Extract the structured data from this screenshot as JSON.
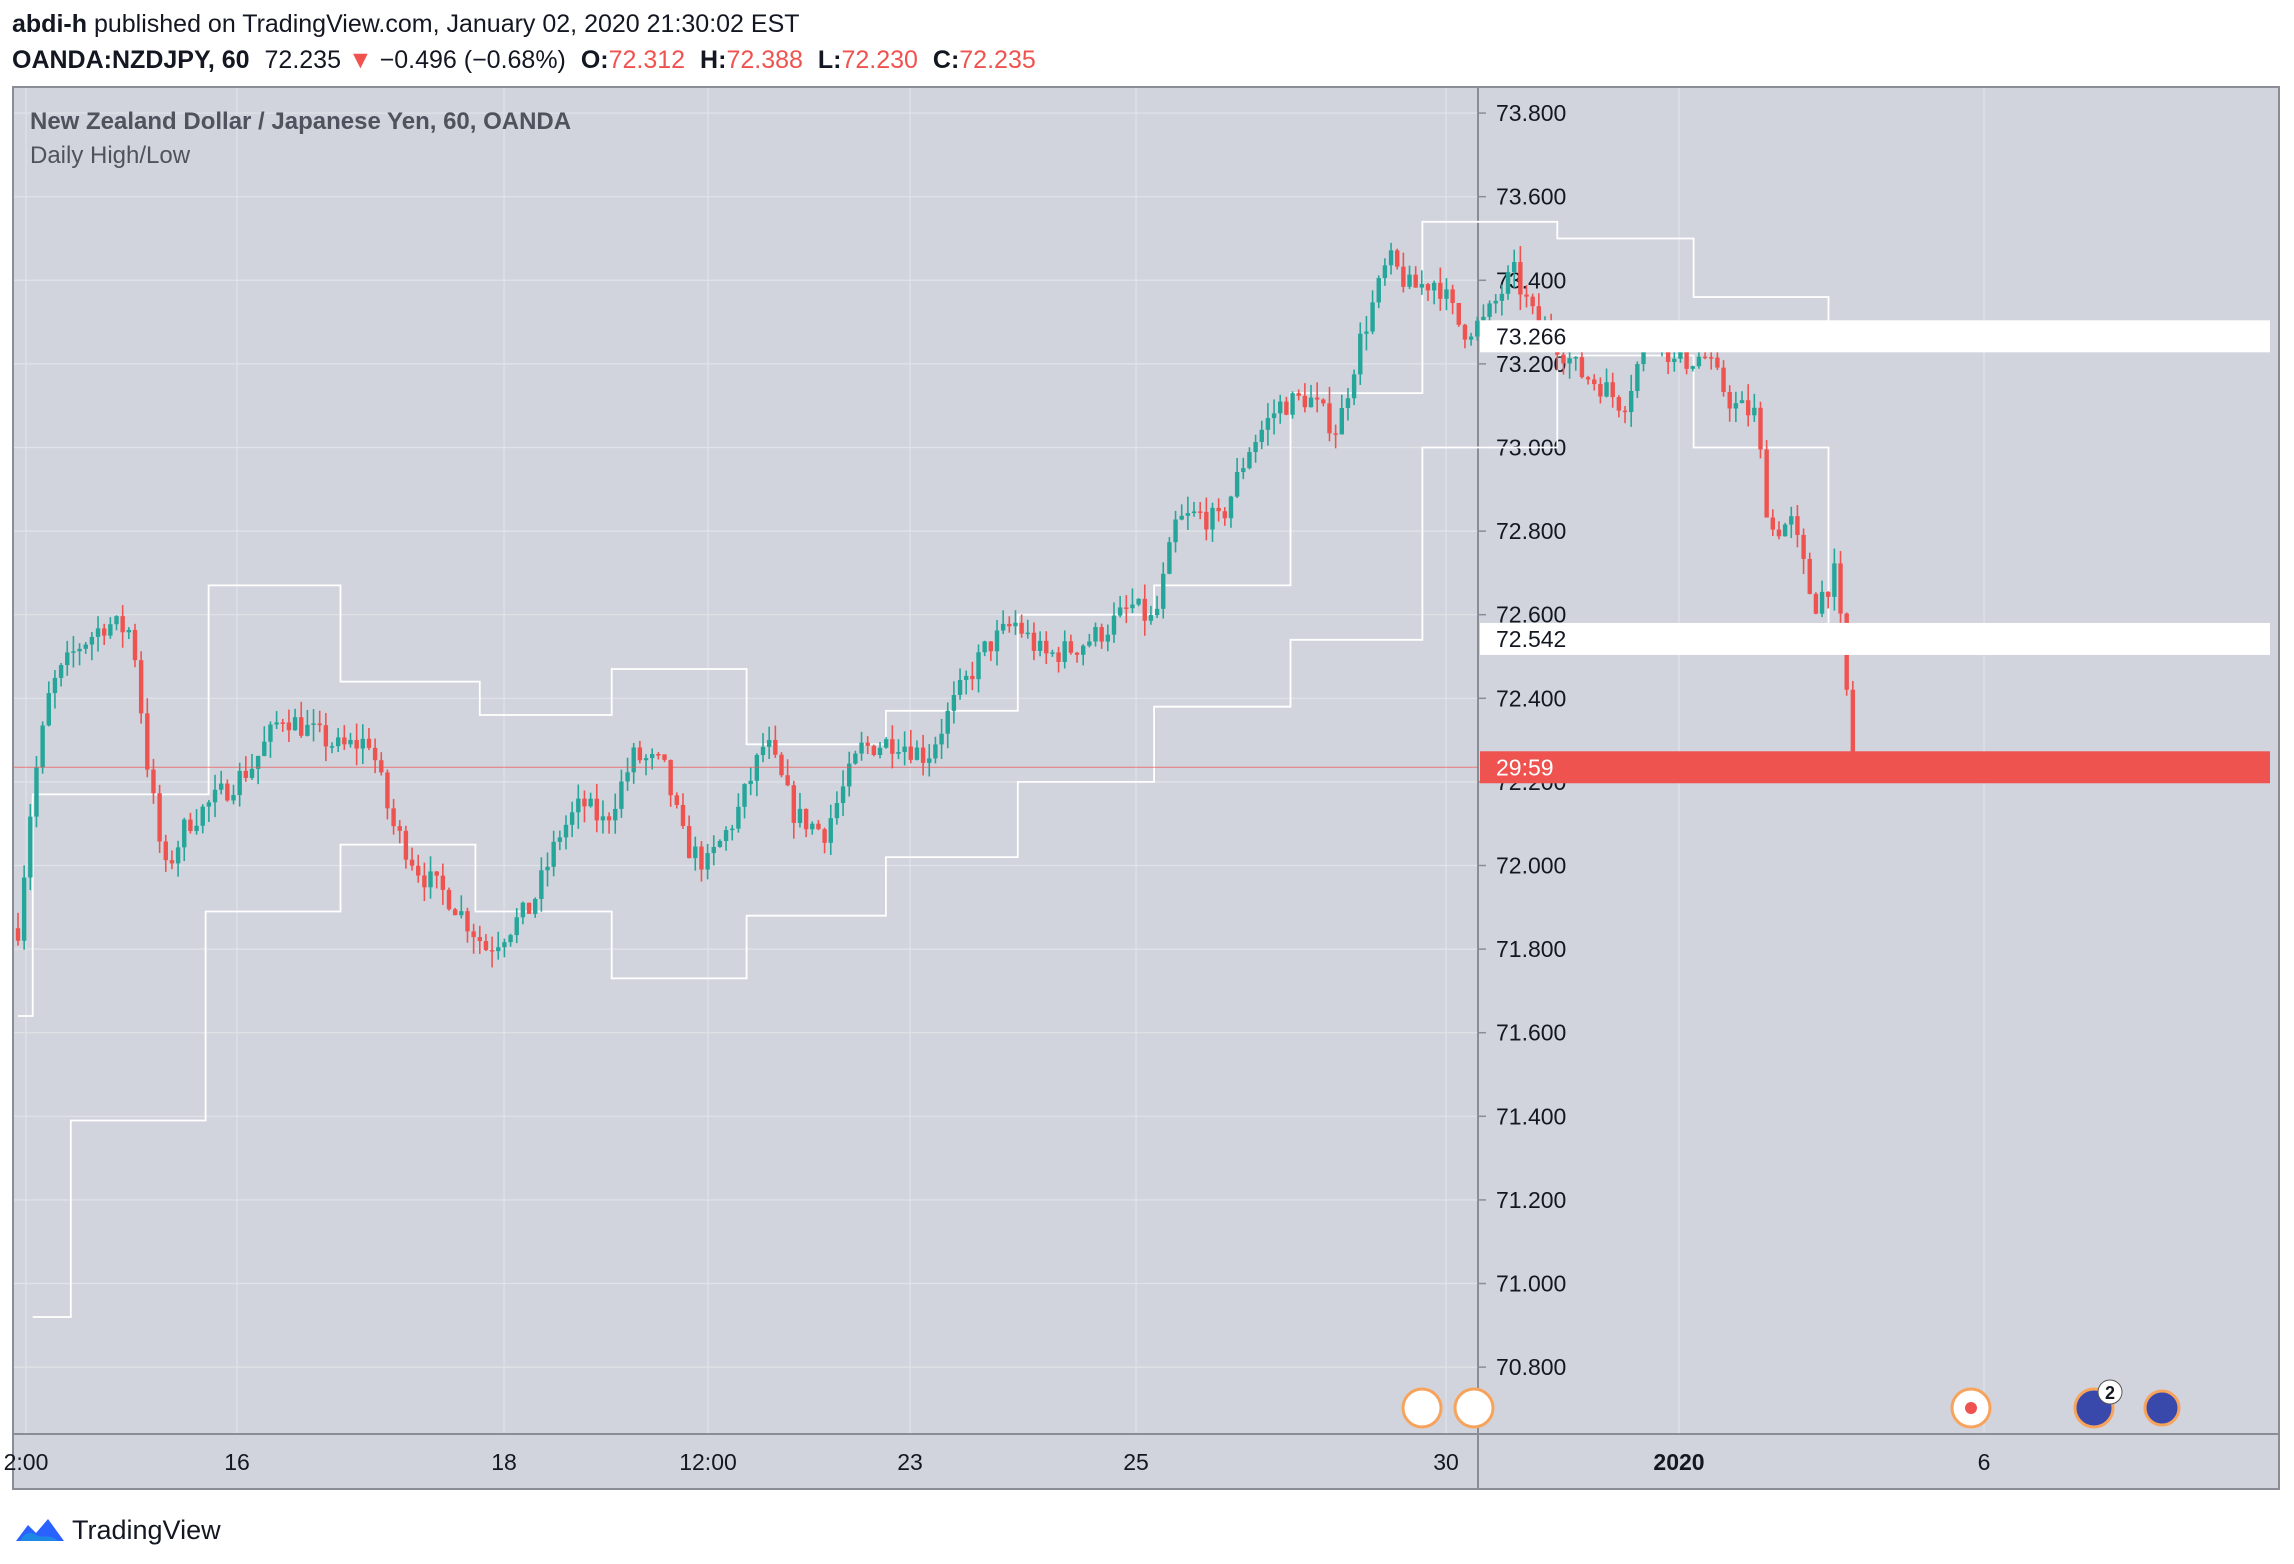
{
  "header": {
    "author": "abdi-h",
    "published_text": "published on TradingView.com, January 02, 2020 21:30:02 EST",
    "symbol": "OANDA:NZDJPY, 60",
    "last_price": "72.235",
    "change_arrow": "▼",
    "change": "−0.496 (−0.68%)",
    "o_label": "O:",
    "o_value": "72.312",
    "h_label": "H:",
    "h_value": "72.388",
    "l_label": "L:",
    "l_value": "72.230",
    "c_label": "C:",
    "c_value": "72.235"
  },
  "legend": {
    "title": "New Zealand Dollar / Japanese Yen, 60, OANDA",
    "indicator": "Daily High/Low"
  },
  "footer": {
    "brand": "TradingView"
  },
  "colors": {
    "background": "#d1d4dc",
    "grid": "#e1e3e8",
    "up": "#26a69a",
    "down": "#ef5350",
    "indicator_line": "#ffffff",
    "price_line": "#ef5350"
  },
  "chart_data": {
    "type": "candlestick",
    "title": "New Zealand Dollar / Japanese Yen, 60, OANDA",
    "y_ticks": [
      "73.800",
      "73.600",
      "73.400",
      "73.200",
      "73.000",
      "72.800",
      "72.600",
      "72.400",
      "72.200",
      "72.000",
      "71.800",
      "71.600",
      "71.400",
      "71.200",
      "71.000",
      "70.800"
    ],
    "ylim": [
      70.64,
      73.86
    ],
    "x_tick_labels": [
      "2:00",
      "16",
      "18",
      "12:00",
      "23",
      "25",
      "30",
      "2020",
      "6"
    ],
    "x_tick_bold": "2020",
    "price_labels": [
      {
        "text": "73.266",
        "value": 73.266,
        "style": "white"
      },
      {
        "text": "72.542",
        "value": 72.542,
        "style": "white"
      },
      {
        "text": "29:59",
        "value": 72.235,
        "style": "red"
      }
    ],
    "last_close": 72.235,
    "close_path": [
      [
        0,
        71.85
      ],
      [
        10,
        72.18
      ],
      [
        22,
        72.42
      ],
      [
        40,
        72.52
      ],
      [
        60,
        72.58
      ],
      [
        78,
        72.56
      ],
      [
        88,
        72.25
      ],
      [
        100,
        71.98
      ],
      [
        115,
        72.1
      ],
      [
        135,
        72.16
      ],
      [
        160,
        72.24
      ],
      [
        180,
        72.36
      ],
      [
        200,
        72.32
      ],
      [
        220,
        72.28
      ],
      [
        240,
        72.3
      ],
      [
        255,
        72.1
      ],
      [
        275,
        71.98
      ],
      [
        295,
        71.92
      ],
      [
        320,
        71.8
      ],
      [
        350,
        71.9
      ],
      [
        370,
        72.08
      ],
      [
        385,
        72.15
      ],
      [
        400,
        72.1
      ],
      [
        420,
        72.26
      ],
      [
        440,
        72.24
      ],
      [
        455,
        72.05
      ],
      [
        470,
        72.0
      ],
      [
        490,
        72.12
      ],
      [
        510,
        72.3
      ],
      [
        530,
        72.12
      ],
      [
        550,
        72.08
      ],
      [
        575,
        72.28
      ],
      [
        600,
        72.3
      ],
      [
        620,
        72.26
      ],
      [
        640,
        72.4
      ],
      [
        660,
        72.52
      ],
      [
        680,
        72.58
      ],
      [
        700,
        72.5
      ],
      [
        720,
        72.52
      ],
      [
        740,
        72.56
      ],
      [
        760,
        72.62
      ],
      [
        775,
        72.58
      ],
      [
        790,
        72.82
      ],
      [
        805,
        72.84
      ],
      [
        820,
        72.82
      ],
      [
        840,
        73.0
      ],
      [
        860,
        73.1
      ],
      [
        880,
        73.12
      ],
      [
        900,
        73.04
      ],
      [
        915,
        73.25
      ],
      [
        935,
        73.45
      ],
      [
        950,
        73.38
      ],
      [
        968,
        73.4
      ],
      [
        985,
        73.28
      ],
      [
        1000,
        73.3
      ],
      [
        1020,
        73.42
      ],
      [
        1035,
        73.3
      ],
      [
        1050,
        73.25
      ],
      [
        1065,
        73.18
      ],
      [
        1080,
        73.15
      ],
      [
        1095,
        73.1
      ],
      [
        1115,
        73.3
      ],
      [
        1130,
        73.2
      ],
      [
        1150,
        73.22
      ],
      [
        1170,
        73.1
      ],
      [
        1185,
        73.08
      ],
      [
        1195,
        72.8
      ],
      [
        1210,
        72.82
      ],
      [
        1225,
        72.62
      ],
      [
        1240,
        72.7
      ],
      [
        1252,
        72.235
      ]
    ],
    "daily_high_line": [
      [
        0,
        71.64
      ],
      [
        10,
        71.64
      ],
      [
        10,
        72.17
      ],
      [
        130,
        72.17
      ],
      [
        130,
        72.67
      ],
      [
        220,
        72.67
      ],
      [
        220,
        72.44
      ],
      [
        315,
        72.44
      ],
      [
        315,
        72.36
      ],
      [
        405,
        72.36
      ],
      [
        405,
        72.47
      ],
      [
        497,
        72.47
      ],
      [
        497,
        72.29
      ],
      [
        592,
        72.29
      ],
      [
        592,
        72.37
      ],
      [
        682,
        72.37
      ],
      [
        682,
        72.6
      ],
      [
        775,
        72.6
      ],
      [
        775,
        72.67
      ],
      [
        868,
        72.67
      ],
      [
        868,
        73.13
      ],
      [
        958,
        73.13
      ],
      [
        958,
        73.54
      ],
      [
        1050,
        73.54
      ],
      [
        1050,
        73.5
      ],
      [
        1143,
        73.5
      ],
      [
        1143,
        73.36
      ],
      [
        1235,
        73.36
      ],
      [
        1235,
        73.266
      ],
      [
        1255,
        73.266
      ]
    ],
    "daily_low_line": [
      [
        10,
        70.92
      ],
      [
        36,
        70.92
      ],
      [
        36,
        71.39
      ],
      [
        128,
        71.39
      ],
      [
        128,
        71.89
      ],
      [
        220,
        71.89
      ],
      [
        220,
        72.05
      ],
      [
        312,
        72.05
      ],
      [
        312,
        71.89
      ],
      [
        405,
        71.89
      ],
      [
        405,
        71.73
      ],
      [
        497,
        71.73
      ],
      [
        497,
        71.88
      ],
      [
        592,
        71.88
      ],
      [
        592,
        72.02
      ],
      [
        682,
        72.02
      ],
      [
        682,
        72.2
      ],
      [
        775,
        72.2
      ],
      [
        775,
        72.38
      ],
      [
        868,
        72.38
      ],
      [
        868,
        72.54
      ],
      [
        958,
        72.54
      ],
      [
        958,
        73.0
      ],
      [
        1050,
        73.0
      ],
      [
        1050,
        73.22
      ],
      [
        1143,
        73.22
      ],
      [
        1143,
        73.0
      ],
      [
        1235,
        73.0
      ],
      [
        1235,
        72.542
      ],
      [
        1255,
        72.542
      ]
    ]
  }
}
